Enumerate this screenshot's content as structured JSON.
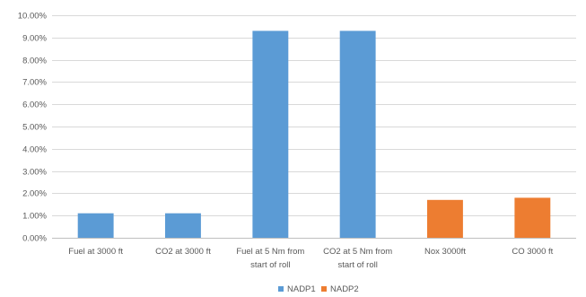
{
  "chart_data": {
    "type": "bar",
    "categories": [
      [
        "Fuel at 3000 ft"
      ],
      [
        "CO2 at  3000 ft"
      ],
      [
        "Fuel at 5 Nm from",
        "start of roll"
      ],
      [
        "CO2 at 5 Nm from",
        "start of roll"
      ],
      [
        "Nox 3000ft"
      ],
      [
        "CO 3000 ft"
      ]
    ],
    "bars": [
      {
        "value": 1.1,
        "series": "NADP1"
      },
      {
        "value": 1.1,
        "series": "NADP1"
      },
      {
        "value": 9.3,
        "series": "NADP1"
      },
      {
        "value": 9.3,
        "series": "NADP1"
      },
      {
        "value": 1.7,
        "series": "NADP2"
      },
      {
        "value": 1.8,
        "series": "NADP2"
      }
    ],
    "series": [
      {
        "name": "NADP1",
        "color": "#5B9BD5"
      },
      {
        "name": "NADP2",
        "color": "#ED7D31"
      }
    ],
    "ylim": [
      0,
      10
    ],
    "yticks": [
      "0.00%",
      "1.00%",
      "2.00%",
      "3.00%",
      "4.00%",
      "5.00%",
      "6.00%",
      "7.00%",
      "8.00%",
      "9.00%",
      "10.00%"
    ],
    "grid": true,
    "legend_position": "bottom-center",
    "title": "",
    "xlabel": "",
    "ylabel": ""
  }
}
